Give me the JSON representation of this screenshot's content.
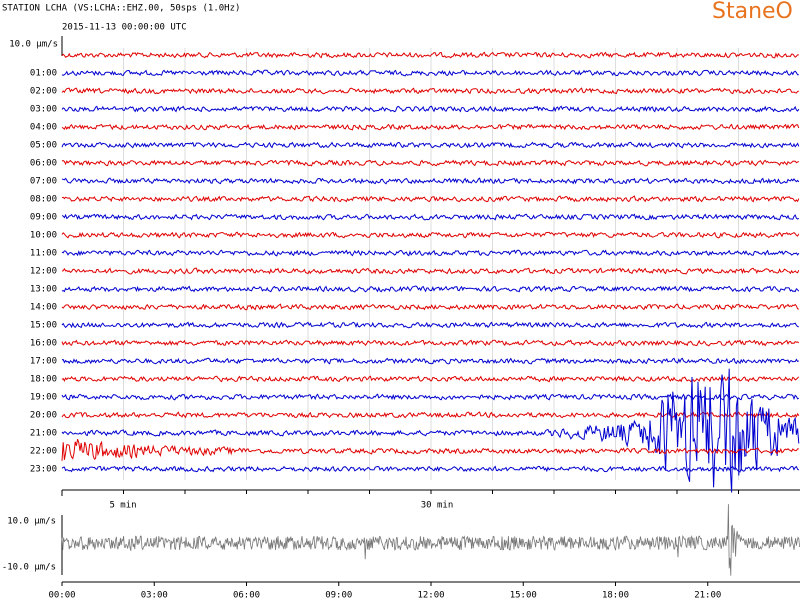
{
  "header": {
    "title": "STATION LCHA (VS:LCHA::EHZ.00, 50sps (1.0Hz)",
    "date": "2015-11-13 00:00:00 UTC",
    "logo": "StaneO"
  },
  "helicorder": {
    "scale_label": "10.0 μm/s",
    "row_labels": [
      "01:00",
      "02:00",
      "03:00",
      "04:00",
      "05:00",
      "06:00",
      "07:00",
      "08:00",
      "09:00",
      "10:00",
      "11:00",
      "12:00",
      "13:00",
      "14:00",
      "15:00",
      "16:00",
      "17:00",
      "18:00",
      "19:00",
      "20:00",
      "21:00",
      "22:00",
      "23:00"
    ],
    "minute_labels": [
      "5 min",
      "30 min"
    ]
  },
  "overview": {
    "y_labels": [
      "10.0 μm/s",
      "-10.0 μm/s"
    ],
    "x_labels": [
      "00:00",
      "03:00",
      "06:00",
      "09:00",
      "12:00",
      "15:00",
      "18:00",
      "21:00"
    ]
  }
}
